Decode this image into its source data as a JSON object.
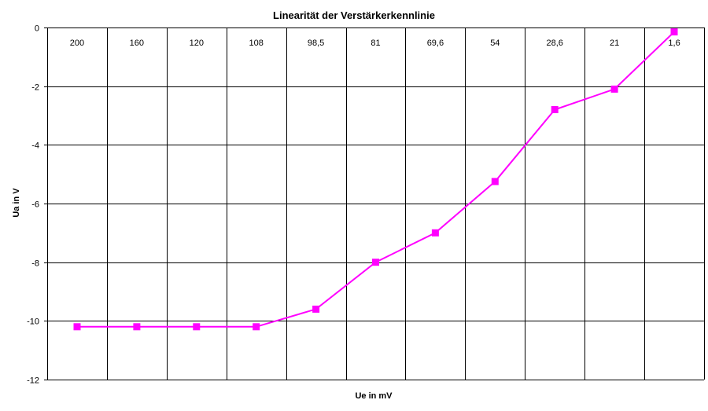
{
  "chart_data": {
    "type": "line",
    "title": "Linearität der Verstärkerkennlinie",
    "xlabel": "Ue in mV",
    "ylabel": "Ua in V",
    "categories": [
      "200",
      "160",
      "120",
      "108",
      "98,5",
      "81",
      "69,6",
      "54",
      "28,6",
      "21",
      "1,6"
    ],
    "series": [
      {
        "values": [
          -10.2,
          -10.2,
          -10.2,
          -10.2,
          -9.6,
          -8.0,
          -7.0,
          -5.25,
          -2.8,
          -2.1,
          -0.15
        ],
        "color": "#ff00ff",
        "marker": "square"
      }
    ],
    "ylim": [
      -12,
      0
    ],
    "yticks": [
      0,
      -2,
      -4,
      -6,
      -8,
      -10,
      -12
    ],
    "ytick_labels": [
      "0",
      "-2",
      "-4",
      "-6",
      "-8",
      "-10",
      "-12"
    ],
    "grid": true,
    "x_tick_position": "top"
  }
}
